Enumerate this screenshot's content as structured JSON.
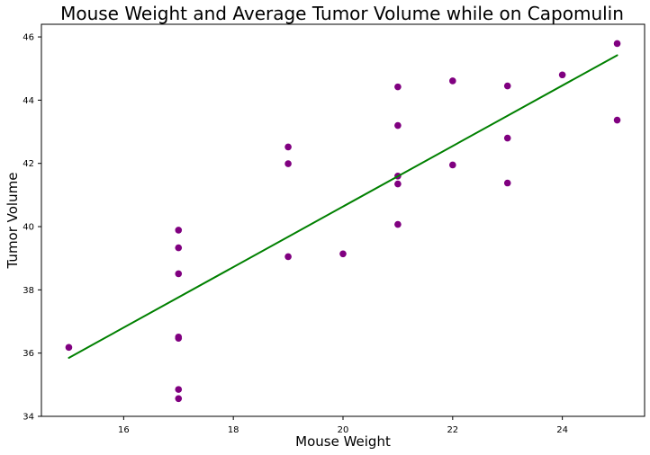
{
  "chart_data": {
    "type": "scatter",
    "title": "Mouse Weight and Average Tumor Volume while on Capomulin",
    "xlabel": "Mouse Weight",
    "ylabel": "Tumor Volume",
    "xlim": [
      14.5,
      25.5
    ],
    "ylim": [
      34,
      46.4
    ],
    "xticks": [
      16,
      18,
      20,
      22,
      24
    ],
    "yticks": [
      34,
      36,
      38,
      40,
      42,
      44,
      46
    ],
    "grid": false,
    "series": [
      {
        "type": "scatter",
        "color": "#800080",
        "points": [
          {
            "x": 15,
            "y": 36.18
          },
          {
            "x": 17,
            "y": 34.56
          },
          {
            "x": 17,
            "y": 34.85
          },
          {
            "x": 17,
            "y": 36.51
          },
          {
            "x": 17,
            "y": 36.47
          },
          {
            "x": 17,
            "y": 38.51
          },
          {
            "x": 17,
            "y": 39.33
          },
          {
            "x": 17,
            "y": 39.89
          },
          {
            "x": 19,
            "y": 39.05
          },
          {
            "x": 19,
            "y": 41.99
          },
          {
            "x": 19,
            "y": 42.52
          },
          {
            "x": 20,
            "y": 39.14
          },
          {
            "x": 21,
            "y": 40.07
          },
          {
            "x": 21,
            "y": 41.35
          },
          {
            "x": 21,
            "y": 41.6
          },
          {
            "x": 21,
            "y": 43.2
          },
          {
            "x": 21,
            "y": 44.42
          },
          {
            "x": 22,
            "y": 41.95
          },
          {
            "x": 22,
            "y": 44.61
          },
          {
            "x": 23,
            "y": 41.38
          },
          {
            "x": 23,
            "y": 42.8
          },
          {
            "x": 23,
            "y": 44.45
          },
          {
            "x": 24,
            "y": 44.8
          },
          {
            "x": 25,
            "y": 43.37
          },
          {
            "x": 25,
            "y": 45.79
          }
        ]
      },
      {
        "type": "line",
        "color": "#008000",
        "points": [
          {
            "x": 15,
            "y": 35.85
          },
          {
            "x": 25,
            "y": 45.42
          }
        ]
      }
    ]
  }
}
